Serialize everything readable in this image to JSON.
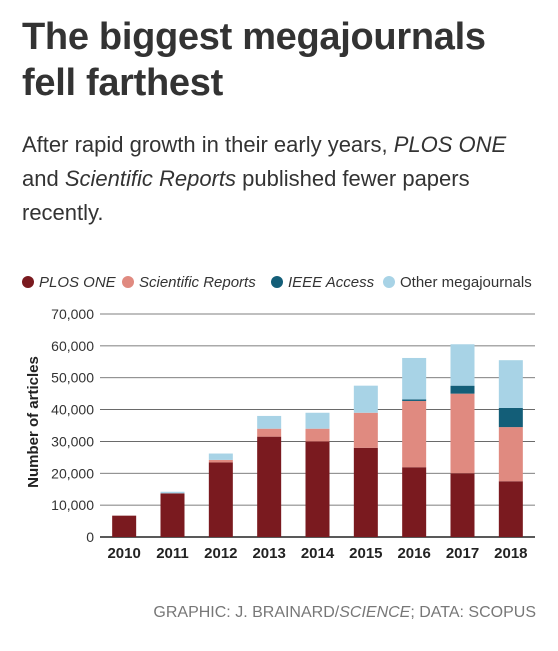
{
  "title": "The biggest megajournals fell farthest",
  "subtitle": {
    "part1": "After rapid growth in their early years, ",
    "italic1": "PLOS ONE",
    "part2": " and ",
    "italic2": "Scientific Reports",
    "part3": " published fewer papers recently."
  },
  "credit": {
    "prefix": "GRAPHIC: J. BRAINARD/",
    "italic": "SCIENCE",
    "suffix": "; DATA: SCOPUS"
  },
  "colors": {
    "plos_one": "#7a1a1f",
    "scientific_reports": "#e08a80",
    "ieee_access": "#135e78",
    "other": "#a8d3e6"
  },
  "chart_data": {
    "type": "bar",
    "stacked": true,
    "title": "",
    "xlabel": "",
    "ylabel": "Number of articles",
    "ylim": [
      0,
      70000
    ],
    "yticks": [
      0,
      10000,
      20000,
      30000,
      40000,
      50000,
      60000,
      70000
    ],
    "ytick_labels": [
      "0",
      "10,000",
      "20,000",
      "30,000",
      "40,000",
      "50,000",
      "60,000",
      "70,000"
    ],
    "grid": true,
    "legend_position": "top",
    "categories": [
      "2010",
      "2011",
      "2012",
      "2013",
      "2014",
      "2015",
      "2016",
      "2017",
      "2018"
    ],
    "series": [
      {
        "name": "PLOS ONE",
        "italic": true,
        "color": "#7a1a1f",
        "values": [
          6700,
          13700,
          23400,
          31500,
          30000,
          28000,
          21900,
          20000,
          17500
        ]
      },
      {
        "name": "Scientific Reports",
        "italic": true,
        "color": "#e08a80",
        "values": [
          0,
          0,
          800,
          2500,
          4000,
          11000,
          20800,
          25000,
          17000
        ]
      },
      {
        "name": "IEEE Access",
        "italic": true,
        "color": "#135e78",
        "values": [
          0,
          0,
          0,
          0,
          0,
          0,
          500,
          2500,
          6000
        ]
      },
      {
        "name": "Other megajournals",
        "italic": false,
        "color": "#a8d3e6",
        "values": [
          0,
          500,
          2000,
          4000,
          5000,
          8500,
          13000,
          13000,
          15000
        ]
      }
    ]
  }
}
